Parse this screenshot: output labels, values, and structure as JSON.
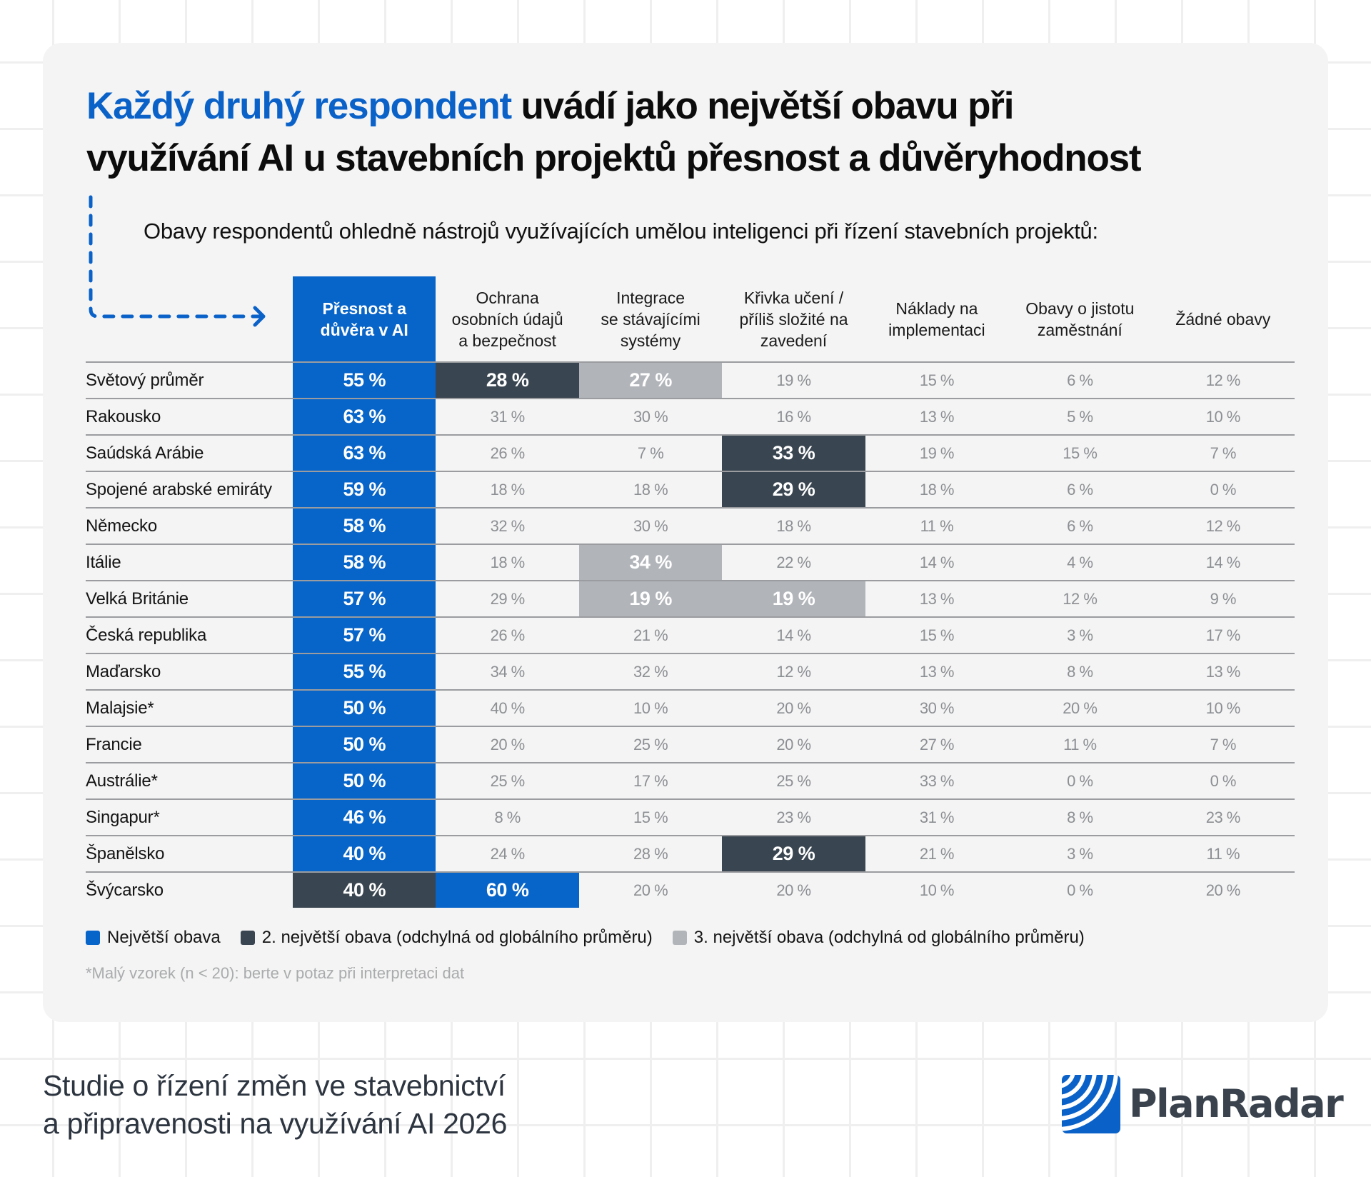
{
  "title": {
    "highlight": "Každý druhý respondent",
    "line1_rest": " uvádí jako největší obavu při",
    "line2": "využívání AI u stavebních projektů přesnost a důvěryhodnost"
  },
  "subtitle": "Obavy respondentů ohledně nástrojů využívajících umělou inteligenci při řízení stavebních projektů:",
  "colors": {
    "primary_blue": "#0764c8",
    "dark": "#394550",
    "gray": "#b1b4b9",
    "card_bg": "#f4f4f4"
  },
  "chart_data": {
    "type": "table",
    "title": "Obavy respondentů ohledně nástrojů využívajících umělou inteligenci při řízení stavebních projektů:",
    "columns": [
      "Přesnost a důvěra v AI",
      "Ochrana osobních údajů a bezpečnost",
      "Integrace se stávajícími systémy",
      "Křivka učení / příliš složité na zavedení",
      "Náklady na implementaci",
      "Obavy o jistotu zaměstnání",
      "Žádné obavy"
    ],
    "column_lines": [
      [
        "Přesnost a",
        "důvěra v AI"
      ],
      [
        "Ochrana",
        "osobních údajů",
        "a bezpečnost"
      ],
      [
        "Integrace",
        "se stávajícími",
        "systémy"
      ],
      [
        "Křivka učení /",
        "příliš složité na",
        "zavedení"
      ],
      [
        "Náklady na",
        "implementaci"
      ],
      [
        "Obavy o jistotu",
        "zaměstnání"
      ],
      [
        "Žádné obavy"
      ]
    ],
    "rows": [
      {
        "label": "Světový průměr",
        "values": [
          "55 %",
          "28 %",
          "27 %",
          "19 %",
          "15 %",
          "6 %",
          "12 %"
        ],
        "highlight": [
          "blue",
          "dark",
          "gray",
          "",
          "",
          "",
          ""
        ]
      },
      {
        "label": "Rakousko",
        "values": [
          "63 %",
          "31 %",
          "30 %",
          "16 %",
          "13 %",
          "5 %",
          "10 %"
        ],
        "highlight": [
          "blue",
          "",
          "",
          "",
          "",
          "",
          ""
        ]
      },
      {
        "label": "Saúdská Arábie",
        "values": [
          "63 %",
          "26 %",
          "7 %",
          "33 %",
          "19 %",
          "15 %",
          "7 %"
        ],
        "highlight": [
          "blue",
          "",
          "",
          "dark",
          "",
          "",
          ""
        ]
      },
      {
        "label": "Spojené arabské emiráty",
        "values": [
          "59 %",
          "18 %",
          "18 %",
          "29 %",
          "18 %",
          "6 %",
          "0 %"
        ],
        "highlight": [
          "blue",
          "",
          "",
          "dark",
          "",
          "",
          ""
        ]
      },
      {
        "label": "Německo",
        "values": [
          "58 %",
          "32 %",
          "30 %",
          "18 %",
          "11 %",
          "6 %",
          "12 %"
        ],
        "highlight": [
          "blue",
          "",
          "",
          "",
          "",
          "",
          ""
        ]
      },
      {
        "label": "Itálie",
        "values": [
          "58 %",
          "18 %",
          "34 %",
          "22 %",
          "14 %",
          "4 %",
          "14 %"
        ],
        "highlight": [
          "blue",
          "",
          "gray",
          "",
          "",
          "",
          ""
        ]
      },
      {
        "label": "Velká Británie",
        "values": [
          "57 %",
          "29 %",
          "19 %",
          "19 %",
          "13 %",
          "12 %",
          "9 %"
        ],
        "highlight": [
          "blue",
          "",
          "gray",
          "gray",
          "",
          "",
          ""
        ]
      },
      {
        "label": "Česká republika",
        "values": [
          "57 %",
          "26 %",
          "21 %",
          "14 %",
          "15 %",
          "3 %",
          "17 %"
        ],
        "highlight": [
          "blue",
          "",
          "",
          "",
          "",
          "",
          ""
        ]
      },
      {
        "label": "Maďarsko",
        "values": [
          "55 %",
          "34 %",
          "32 %",
          "12 %",
          "13 %",
          "8 %",
          "13 %"
        ],
        "highlight": [
          "blue",
          "",
          "",
          "",
          "",
          "",
          ""
        ]
      },
      {
        "label": "Malajsie*",
        "values": [
          "50 %",
          "40 %",
          "10 %",
          "20 %",
          "30 %",
          "20 %",
          "10 %"
        ],
        "highlight": [
          "blue",
          "",
          "",
          "",
          "",
          "",
          ""
        ]
      },
      {
        "label": "Francie",
        "values": [
          "50 %",
          "20 %",
          "25 %",
          "20 %",
          "27 %",
          "11 %",
          "7 %"
        ],
        "highlight": [
          "blue",
          "",
          "",
          "",
          "",
          "",
          ""
        ]
      },
      {
        "label": "Austrálie*",
        "values": [
          "50 %",
          "25 %",
          "17 %",
          "25 %",
          "33 %",
          "0 %",
          "0 %"
        ],
        "highlight": [
          "blue",
          "",
          "",
          "",
          "",
          "",
          ""
        ]
      },
      {
        "label": "Singapur*",
        "values": [
          "46 %",
          "8 %",
          "15 %",
          "23 %",
          "31 %",
          "8 %",
          "23 %"
        ],
        "highlight": [
          "blue",
          "",
          "",
          "",
          "",
          "",
          ""
        ]
      },
      {
        "label": "Španělsko",
        "values": [
          "40 %",
          "24 %",
          "28 %",
          "29 %",
          "21 %",
          "3 %",
          "11 %"
        ],
        "highlight": [
          "blue",
          "",
          "",
          "dark",
          "",
          "",
          ""
        ]
      },
      {
        "label": "Švýcarsko",
        "values": [
          "40 %",
          "60 %",
          "20 %",
          "20 %",
          "10 %",
          "0 %",
          "20 %"
        ],
        "highlight": [
          "dark",
          "blue",
          "",
          "",
          "",
          "",
          ""
        ]
      }
    ],
    "legend": [
      {
        "label": "Největší obava",
        "color": "#0764c8"
      },
      {
        "label": "2. největší obava (odchylná od globálního průměru)",
        "color": "#394550"
      },
      {
        "label": "3. největší obava (odchylná od globálního průměru)",
        "color": "#b1b4b9"
      }
    ]
  },
  "footnote": "*Malý vzorek (n < 20): berte v potaz při interpretaci dat",
  "footer": {
    "line1": "Studie o řízení změn ve stavebnictví",
    "line2": "a připravenosti na využívání AI 2026"
  },
  "logo": {
    "text": "PlanRadar",
    "icon": "radar-waves-icon"
  }
}
